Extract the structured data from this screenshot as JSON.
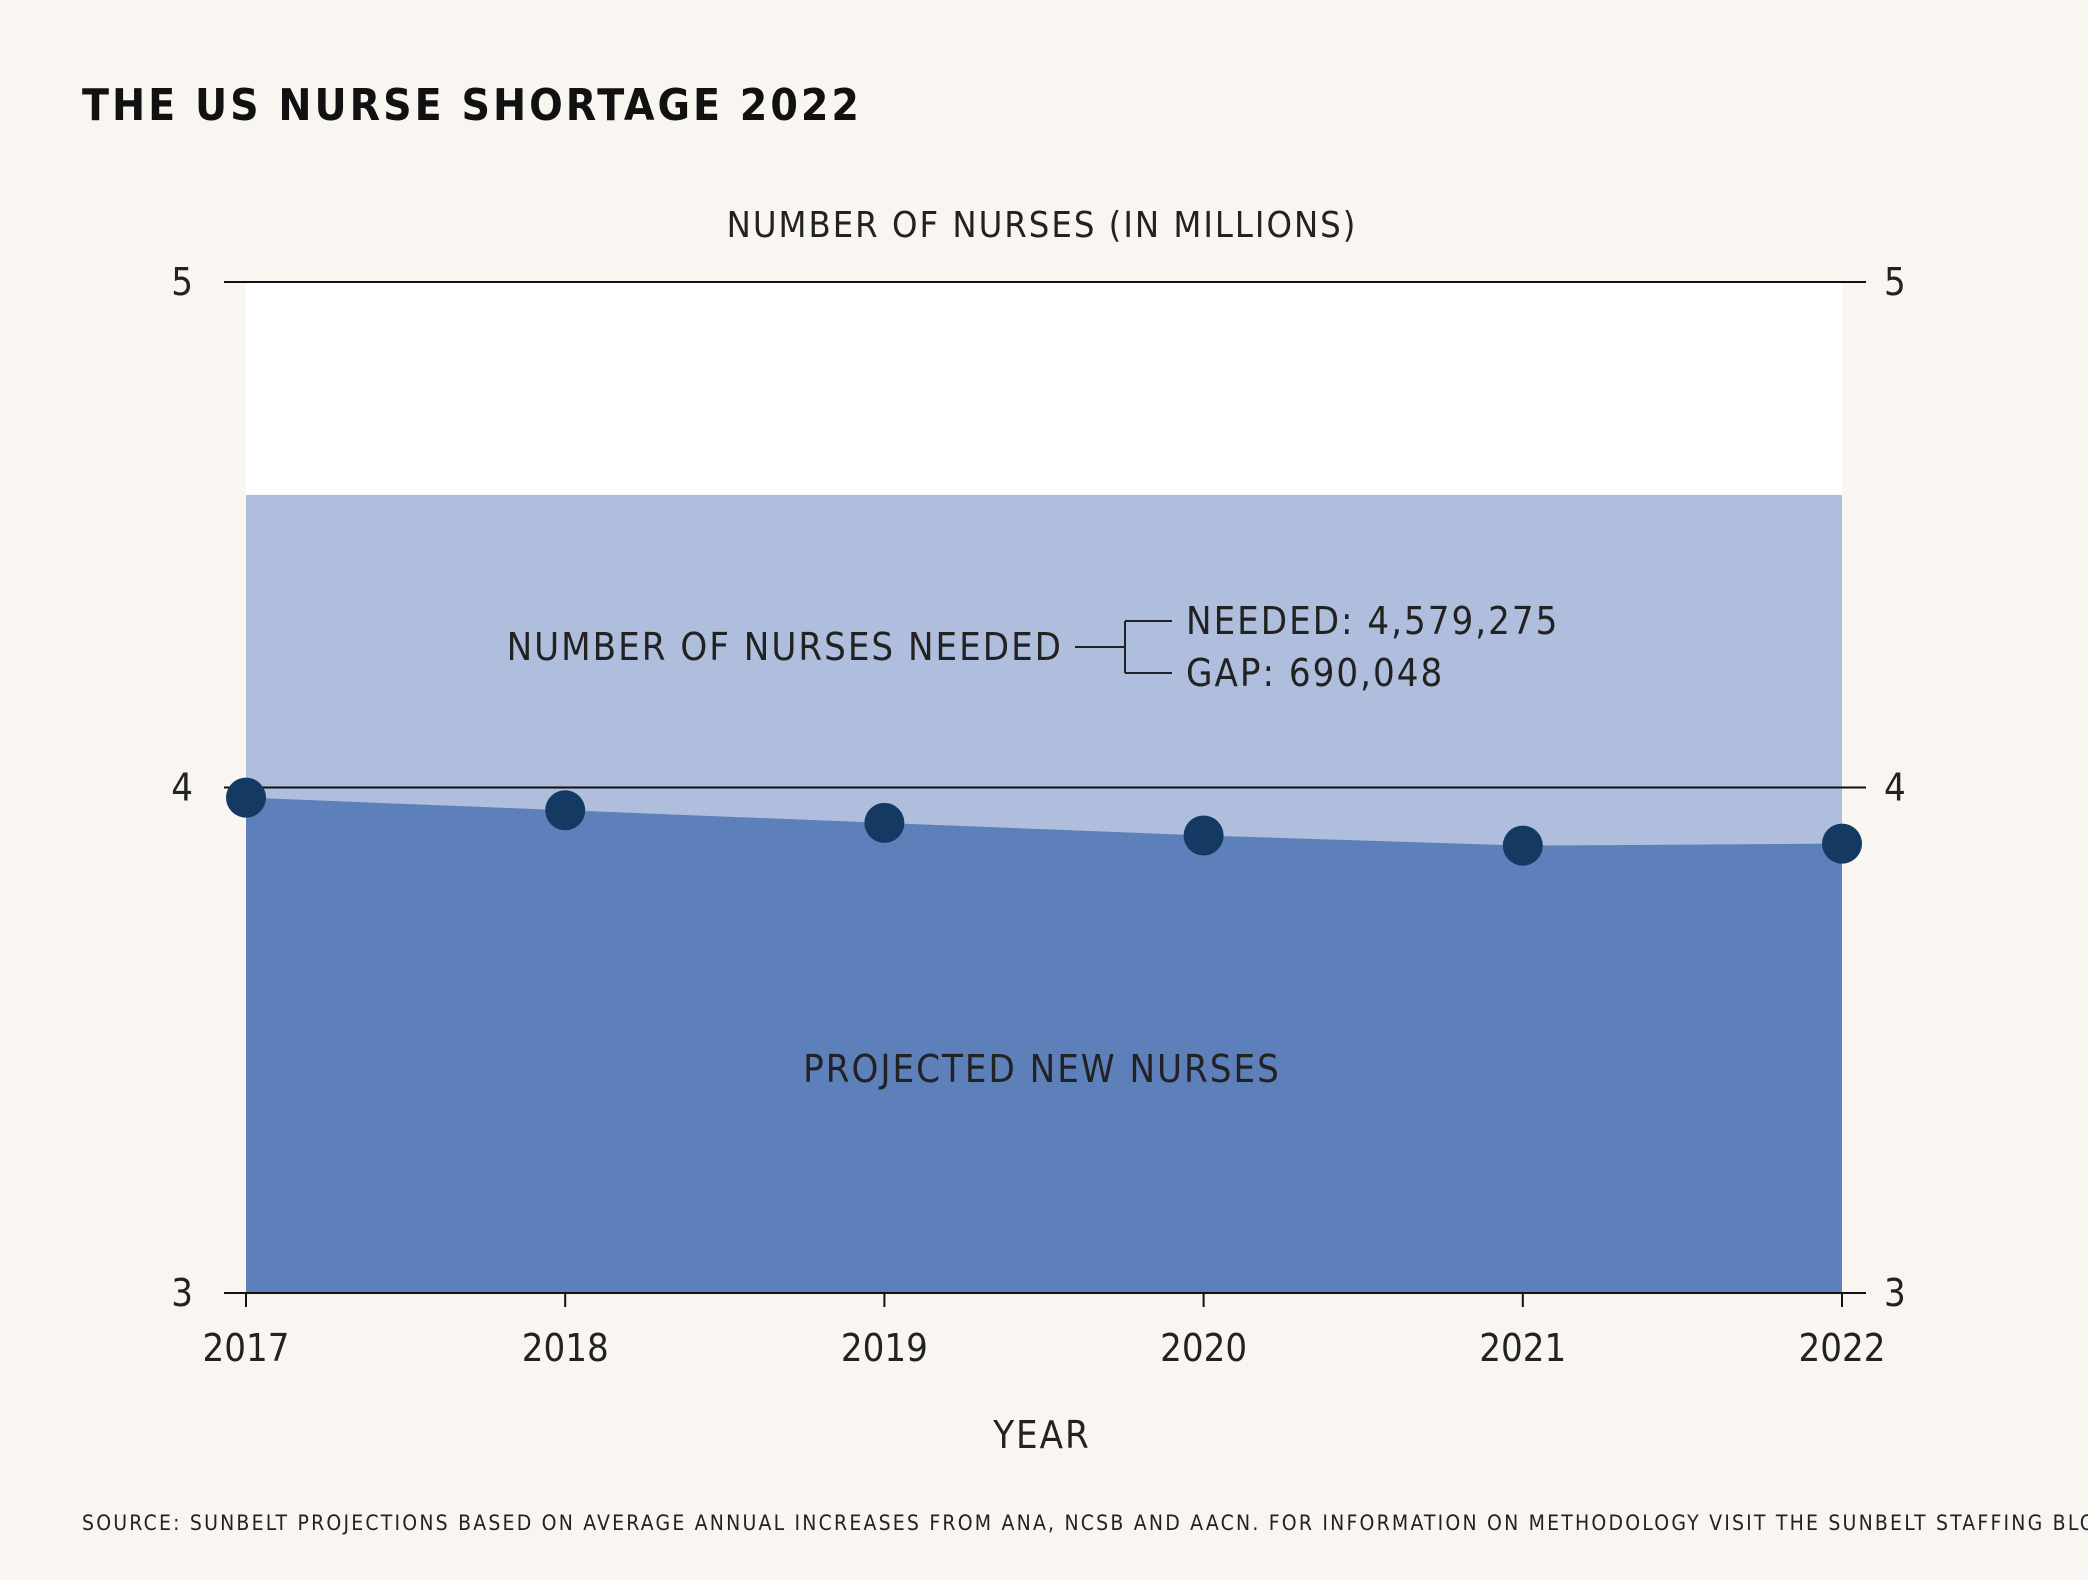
{
  "chart_data": {
    "type": "area",
    "title": "THE US NURSE SHORTAGE 2022",
    "subtitle": "NUMBER OF NURSES (IN MILLIONS)",
    "xlabel": "YEAR",
    "ylabel": "",
    "categories": [
      "2017",
      "2018",
      "2019",
      "2020",
      "2021",
      "2022"
    ],
    "ylim": [
      3,
      5
    ],
    "yticks": [
      3,
      4,
      5
    ],
    "grid": true,
    "series": [
      {
        "name": "NUMBER OF NURSES NEEDED",
        "values": [
          4.579,
          4.579,
          4.579,
          4.579,
          4.579,
          4.579
        ],
        "color": "#afbedc"
      },
      {
        "name": "PROJECTED NEW NURSES",
        "values": [
          3.98,
          3.955,
          3.93,
          3.905,
          3.885,
          3.889
        ],
        "color": "#5d7fba",
        "marker_color": "#143a63"
      }
    ],
    "annotations": {
      "needed": "NEEDED: 4,579,275",
      "gap": "GAP: 690,048"
    },
    "source": "SOURCE: SUNBELT PROJECTIONS BASED ON AVERAGE ANNUAL INCREASES FROM ANA, NCSB AND AACN. FOR INFORMATION ON METHODOLOGY VISIT THE SUNBELT STAFFING BLOG."
  }
}
